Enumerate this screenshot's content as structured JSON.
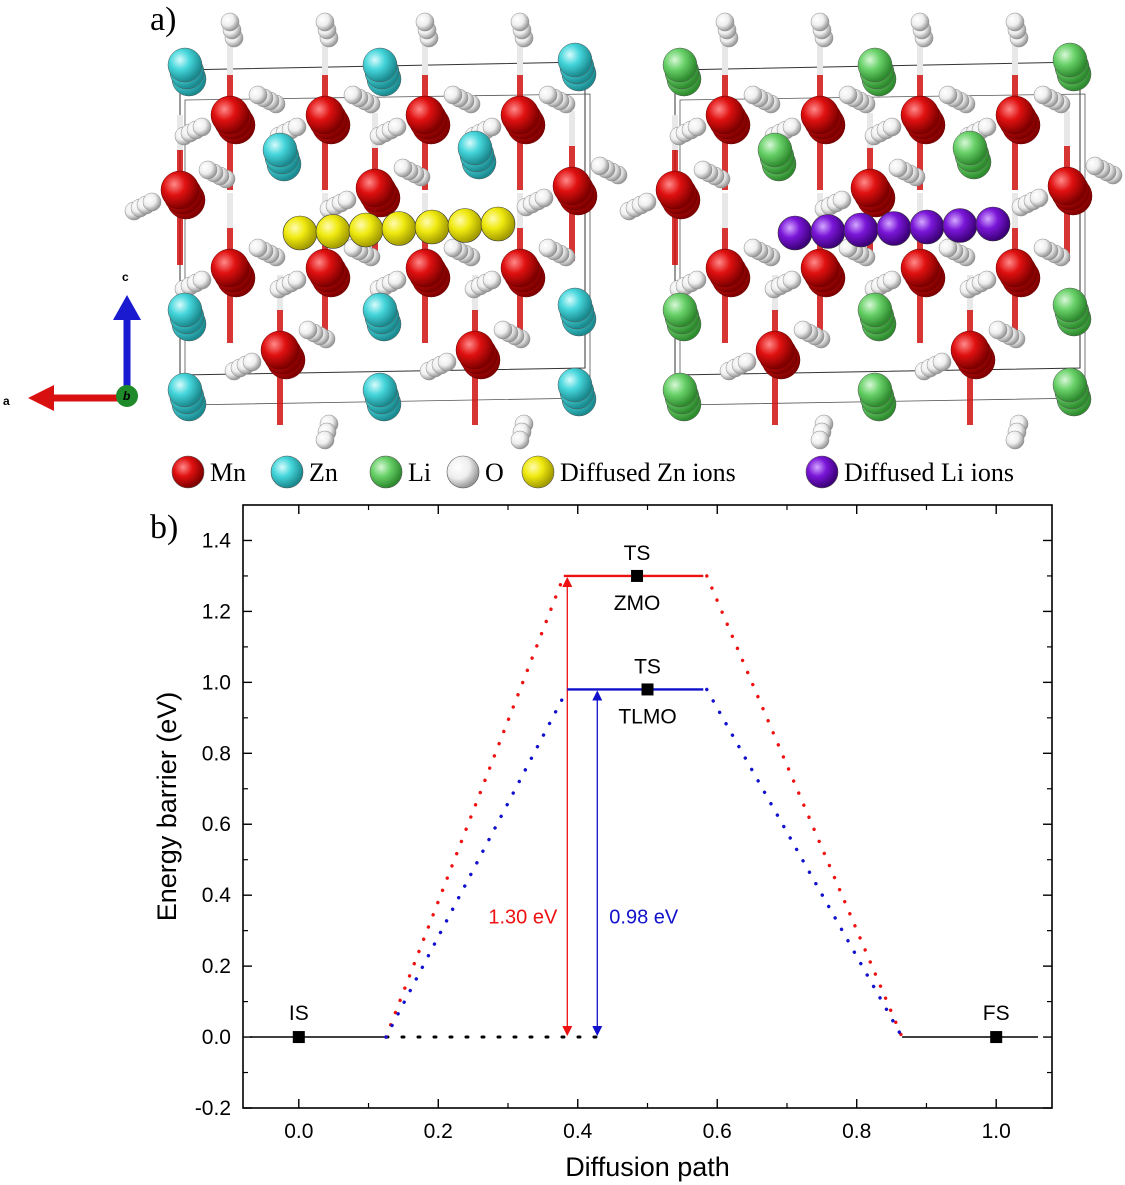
{
  "panel_a": {
    "label": "a)",
    "axes": {
      "a": "a",
      "b": "b",
      "c": "c"
    },
    "legend": [
      {
        "label": "Mn",
        "color": "#e01010"
      },
      {
        "label": "Zn",
        "color": "#45d6db"
      },
      {
        "label": "Li",
        "color": "#6ad26a"
      },
      {
        "label": "O",
        "color": "#f2f2f2"
      },
      {
        "label": "Diffused Zn ions",
        "color": "#f0ea10"
      },
      {
        "label": "Diffused Li ions",
        "color": "#7a16d8"
      }
    ]
  },
  "panel_b": {
    "label": "b)"
  },
  "chart_data": {
    "type": "line",
    "xlabel": "Diffusion path",
    "ylabel": "Energy barrier (eV)",
    "xlim": [
      -0.08,
      1.08
    ],
    "ylim": [
      -0.2,
      1.5
    ],
    "xticks": [
      "0.0",
      "0.2",
      "0.4",
      "0.6",
      "0.8",
      "1.0"
    ],
    "yticks": [
      "-0.2",
      "0.0",
      "0.2",
      "0.4",
      "0.6",
      "0.8",
      "1.0",
      "1.2",
      "1.4"
    ],
    "colors": {
      "ZMO": "#ee1111",
      "TLMO": "#1111cc",
      "base": "#000000"
    },
    "states": [
      {
        "label": "IS",
        "x": 0.0,
        "y": 0.0,
        "level": [
          -0.07,
          0.125
        ]
      },
      {
        "label": "FS",
        "x": 1.0,
        "y": 0.0,
        "level": [
          0.865,
          1.06
        ]
      }
    ],
    "series": [
      {
        "name": "ZMO",
        "ts_label": "TS",
        "ts": {
          "x": 0.485,
          "y": 1.3
        },
        "level": [
          0.38,
          0.58
        ],
        "barrier": "1.30 eV",
        "arrow_x": 0.385,
        "dotted_up": [
          [
            0.125,
            0.0
          ],
          [
            0.38,
            1.3
          ]
        ],
        "dotted_down": [
          [
            0.585,
            1.3
          ],
          [
            0.865,
            0.0
          ]
        ]
      },
      {
        "name": "TLMO",
        "ts_label": "TS",
        "ts": {
          "x": 0.5,
          "y": 0.98
        },
        "level": [
          0.385,
          0.58
        ],
        "barrier": "0.98 eV",
        "arrow_x": 0.428,
        "dotted_up": [
          [
            0.125,
            0.0
          ],
          [
            0.385,
            0.98
          ]
        ],
        "dotted_down": [
          [
            0.585,
            0.98
          ],
          [
            0.865,
            0.0
          ]
        ]
      }
    ],
    "baseline_dotted": [
      [
        0.125,
        0.0
      ],
      [
        0.43,
        0.0
      ]
    ]
  }
}
